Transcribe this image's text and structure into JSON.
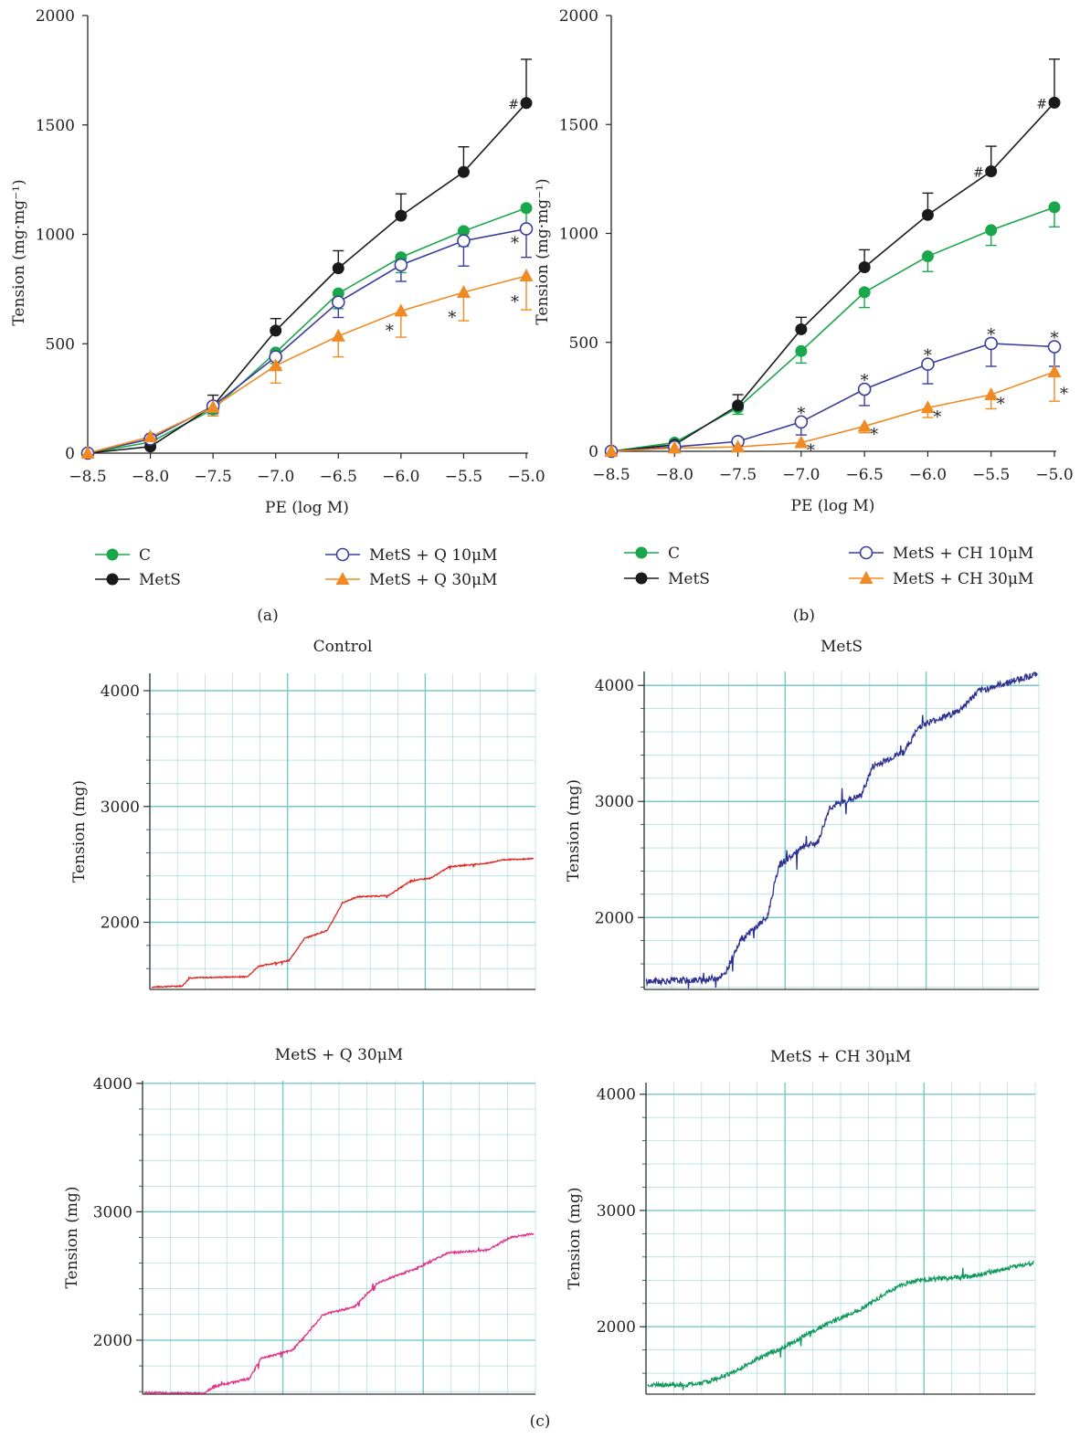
{
  "colors": {
    "C": "#1aa64b",
    "MetS": "#1a1a1a",
    "Q10": "#3b3c9c",
    "Q30": "#f08a24",
    "grid": "#79c8c8",
    "trace_control": "#e0231c",
    "trace_mets": "#2e3191",
    "trace_q30": "#e0308a",
    "trace_ch30": "#0f9a5c"
  },
  "panel_labels": {
    "a": "(a)",
    "b": "(b)",
    "c": "(c)"
  },
  "chart_data": [
    {
      "id": "a",
      "type": "line",
      "xlabel": "PE (log M)",
      "ylabel": "Tension (mg·mg⁻¹)",
      "x": [
        -8.5,
        -8.0,
        -7.5,
        -7.0,
        -6.5,
        -6.0,
        -5.5,
        -5.0
      ],
      "xticks": [
        "−8.5",
        "−8.0",
        "−7.5",
        "−7.0",
        "−6.5",
        "−6.0",
        "−5.5",
        "−5.0"
      ],
      "ylim": [
        0,
        2000
      ],
      "yticks": [
        "0",
        "500",
        "1000",
        "1500",
        "2000"
      ],
      "series": [
        {
          "name": "C",
          "marker": "circle-filled",
          "color_key": "C",
          "values": [
            0,
            50,
            200,
            460,
            730,
            895,
            1015,
            1120
          ],
          "errors": [
            0,
            15,
            30,
            50,
            70,
            70,
            70,
            90
          ],
          "err_dir": -1
        },
        {
          "name": "MetS",
          "marker": "circle-filled",
          "color_key": "MetS",
          "values": [
            0,
            30,
            215,
            560,
            845,
            1085,
            1285,
            1600
          ],
          "errors": [
            0,
            10,
            50,
            55,
            80,
            100,
            115,
            200
          ],
          "err_dir": 1
        },
        {
          "name": "MetS + Q 10μM",
          "marker": "circle-open",
          "color_key": "Q10",
          "values": [
            0,
            65,
            215,
            440,
            690,
            860,
            970,
            1025
          ],
          "errors": [
            0,
            15,
            35,
            50,
            70,
            75,
            115,
            130
          ],
          "err_dir": -1
        },
        {
          "name": "MetS + Q 30μM",
          "marker": "triangle",
          "color_key": "Q30",
          "values": [
            0,
            75,
            210,
            400,
            535,
            650,
            735,
            810
          ],
          "errors": [
            0,
            15,
            40,
            80,
            95,
            120,
            130,
            155
          ],
          "err_dir": -1
        }
      ],
      "annotations": [
        {
          "text": "#",
          "x": -5.0,
          "y": 1600,
          "color_key": "MetS",
          "pos": "left"
        },
        {
          "text": "*",
          "x": -5.0,
          "y": 960,
          "color_key": "Q10",
          "pos": "left"
        },
        {
          "text": "*",
          "x": -6.0,
          "y": 560,
          "color_key": "Q30",
          "pos": "left"
        },
        {
          "text": "*",
          "x": -5.5,
          "y": 620,
          "color_key": "Q30",
          "pos": "left"
        },
        {
          "text": "*",
          "x": -5.0,
          "y": 690,
          "color_key": "Q30",
          "pos": "left"
        }
      ],
      "legend": [
        "C",
        "MetS",
        "MetS + Q 10μM",
        "MetS + Q 30μM"
      ]
    },
    {
      "id": "b",
      "type": "line",
      "xlabel": "PE (log M)",
      "ylabel": "Tension (mg·mg⁻¹)",
      "x": [
        -8.5,
        -8.0,
        -7.5,
        -7.0,
        -6.5,
        -6.0,
        -5.5,
        -5.0
      ],
      "xticks": [
        "−8.5",
        "−8.0",
        "−7.5",
        "−7.0",
        "−6.5",
        "−6.0",
        "−5.5",
        "−5.0"
      ],
      "ylim": [
        0,
        2000
      ],
      "yticks": [
        "0",
        "500",
        "1000",
        "1500",
        "2000"
      ],
      "series": [
        {
          "name": "C",
          "marker": "circle-filled",
          "color_key": "C",
          "values": [
            0,
            40,
            200,
            460,
            730,
            895,
            1015,
            1120
          ],
          "errors": [
            0,
            10,
            30,
            55,
            70,
            70,
            70,
            90
          ],
          "err_dir": -1
        },
        {
          "name": "MetS",
          "marker": "circle-filled",
          "color_key": "MetS",
          "values": [
            0,
            30,
            210,
            560,
            845,
            1085,
            1285,
            1600
          ],
          "errors": [
            0,
            10,
            50,
            55,
            80,
            100,
            115,
            200
          ],
          "err_dir": 1
        },
        {
          "name": "MetS + CH 10μM",
          "marker": "circle-open",
          "color_key": "Q10",
          "values": [
            0,
            20,
            45,
            135,
            285,
            400,
            495,
            480
          ],
          "errors": [
            0,
            10,
            15,
            60,
            75,
            90,
            105,
            90
          ],
          "err_dir": -1
        },
        {
          "name": "MetS + CH 30μM",
          "marker": "triangle",
          "color_key": "Q30",
          "values": [
            0,
            15,
            20,
            40,
            115,
            200,
            260,
            365
          ],
          "errors": [
            0,
            5,
            10,
            20,
            30,
            45,
            65,
            135
          ],
          "err_dir": -1
        }
      ],
      "annotations": [
        {
          "text": "#",
          "x": -5.0,
          "y": 1600,
          "color_key": "MetS",
          "pos": "left"
        },
        {
          "text": "#",
          "x": -5.5,
          "y": 1285,
          "color_key": "MetS",
          "pos": "left"
        },
        {
          "text": "*",
          "x": -7.0,
          "y": 175,
          "color_key": "Q10",
          "pos": "above"
        },
        {
          "text": "*",
          "x": -6.5,
          "y": 325,
          "color_key": "Q10",
          "pos": "above"
        },
        {
          "text": "*",
          "x": -6.0,
          "y": 440,
          "color_key": "Q10",
          "pos": "above"
        },
        {
          "text": "*",
          "x": -5.5,
          "y": 535,
          "color_key": "Q10",
          "pos": "above"
        },
        {
          "text": "*",
          "x": -5.0,
          "y": 520,
          "color_key": "Q10",
          "pos": "above"
        },
        {
          "text": "*",
          "x": -7.0,
          "y": 20,
          "color_key": "Q30",
          "pos": "right"
        },
        {
          "text": "*",
          "x": -6.5,
          "y": 95,
          "color_key": "Q30",
          "pos": "right"
        },
        {
          "text": "*",
          "x": -6.0,
          "y": 175,
          "color_key": "Q30",
          "pos": "right"
        },
        {
          "text": "*",
          "x": -5.5,
          "y": 235,
          "color_key": "Q30",
          "pos": "right"
        },
        {
          "text": "*",
          "x": -5.0,
          "y": 280,
          "color_key": "Q30",
          "pos": "right"
        }
      ],
      "legend": [
        "C",
        "MetS",
        "MetS + CH 10μM",
        "MetS + CH 30μM"
      ]
    },
    {
      "id": "c1",
      "type": "line",
      "title": "Control",
      "ylabel": "Tension (mg)",
      "yticks": [
        "2000",
        "3000",
        "4000"
      ],
      "ylim": [
        1420,
        4150
      ],
      "color_key": "trace_control",
      "levels": [
        [
          0,
          1440
        ],
        [
          0.08,
          1450
        ],
        [
          0.1,
          1520
        ],
        [
          0.25,
          1530
        ],
        [
          0.28,
          1620
        ],
        [
          0.36,
          1670
        ],
        [
          0.4,
          1860
        ],
        [
          0.46,
          1930
        ],
        [
          0.5,
          2170
        ],
        [
          0.54,
          2220
        ],
        [
          0.62,
          2230
        ],
        [
          0.68,
          2360
        ],
        [
          0.73,
          2380
        ],
        [
          0.78,
          2480
        ],
        [
          0.88,
          2510
        ],
        [
          0.92,
          2540
        ],
        [
          1.0,
          2550
        ]
      ],
      "noise": 10
    },
    {
      "id": "c2",
      "type": "line",
      "title": "MetS",
      "ylabel": "Tension (mg)",
      "yticks": [
        "2000",
        "3000",
        "4000"
      ],
      "ylim": [
        1380,
        4120
      ],
      "color_key": "trace_mets",
      "levels": [
        [
          0,
          1450
        ],
        [
          0.15,
          1460
        ],
        [
          0.2,
          1500
        ],
        [
          0.24,
          1800
        ],
        [
          0.31,
          2000
        ],
        [
          0.34,
          2450
        ],
        [
          0.4,
          2600
        ],
        [
          0.44,
          2650
        ],
        [
          0.47,
          2950
        ],
        [
          0.55,
          3050
        ],
        [
          0.58,
          3300
        ],
        [
          0.66,
          3430
        ],
        [
          0.7,
          3650
        ],
        [
          0.8,
          3780
        ],
        [
          0.85,
          3950
        ],
        [
          1.0,
          4100
        ]
      ],
      "noise": 55
    },
    {
      "id": "c3",
      "type": "line",
      "title": "MetS + Q 30μM",
      "ylabel": "Tension (mg)",
      "yticks": [
        "2000",
        "3000",
        "4000"
      ],
      "ylim": [
        1580,
        4020
      ],
      "color_key": "trace_q30",
      "levels": [
        [
          0,
          1590
        ],
        [
          0.15,
          1585
        ],
        [
          0.18,
          1640
        ],
        [
          0.27,
          1700
        ],
        [
          0.3,
          1860
        ],
        [
          0.38,
          1920
        ],
        [
          0.46,
          2200
        ],
        [
          0.54,
          2260
        ],
        [
          0.6,
          2450
        ],
        [
          0.7,
          2560
        ],
        [
          0.78,
          2680
        ],
        [
          0.88,
          2700
        ],
        [
          0.94,
          2800
        ],
        [
          1.0,
          2830
        ]
      ],
      "noise": 16
    },
    {
      "id": "c4",
      "type": "line",
      "title": "MetS + CH 30μM",
      "ylabel": "Tension (mg)",
      "yticks": [
        "2000",
        "3000",
        "4000"
      ],
      "ylim": [
        1420,
        4100
      ],
      "color_key": "trace_ch30",
      "levels": [
        [
          0,
          1500
        ],
        [
          0.1,
          1500
        ],
        [
          0.15,
          1520
        ],
        [
          0.23,
          1620
        ],
        [
          0.28,
          1720
        ],
        [
          0.35,
          1820
        ],
        [
          0.45,
          2000
        ],
        [
          0.55,
          2150
        ],
        [
          0.65,
          2350
        ],
        [
          0.7,
          2400
        ],
        [
          0.83,
          2430
        ],
        [
          1.0,
          2550
        ]
      ],
      "noise": 38
    }
  ]
}
